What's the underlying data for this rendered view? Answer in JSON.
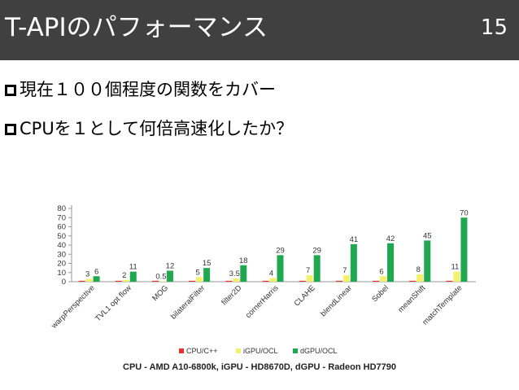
{
  "header": {
    "title": "T-APIのパフォーマンス",
    "page_number": "15",
    "background": "#404040"
  },
  "bullets": [
    {
      "text": "現在１００個程度の関数をカバー"
    },
    {
      "text": "CPUを１として何倍高速化したか？"
    }
  ],
  "chart_data": {
    "type": "bar",
    "categories": [
      "warpPerspective",
      "TVL1 opt flow",
      "MOG",
      "bilateralFilter",
      "filter2D",
      "cornerHarris",
      "CLAHE",
      "blendLinear",
      "Sobel",
      "meanShift",
      "matchTemplate"
    ],
    "series": [
      {
        "name": "CPU/C++",
        "color": "#e8312f",
        "values": [
          1,
          1,
          1,
          1,
          1,
          1,
          1,
          1,
          1,
          1,
          1
        ],
        "labels": [
          "",
          "",
          "",
          "",
          "",
          "",
          "",
          "",
          "",
          "",
          ""
        ]
      },
      {
        "name": "iGPU/OCL",
        "color": "#f4f06b",
        "values": [
          3,
          2,
          0.5,
          5,
          3.5,
          4,
          7,
          7,
          6,
          8,
          11
        ],
        "labels": [
          "3",
          "2",
          "0.5",
          "5",
          "3.5",
          "4",
          "7",
          "7",
          "6",
          "8",
          "11"
        ]
      },
      {
        "name": "dGPU/OCL",
        "color": "#1fa84f",
        "values": [
          6,
          11,
          12,
          15,
          18,
          29,
          29,
          41,
          42,
          45,
          70
        ],
        "labels": [
          "6",
          "11",
          "12",
          "15",
          "18",
          "29",
          "29",
          "41",
          "42",
          "45",
          "70"
        ]
      }
    ],
    "yticks": [
      0,
      10,
      20,
      30,
      40,
      50,
      60,
      70,
      80
    ],
    "ylim": [
      0,
      80
    ],
    "grid": false,
    "legend_position": "bottom"
  },
  "caption": "CPU - AMD A10-6800k, iGPU - HD8670D, dGPU - Radeon HD7790"
}
